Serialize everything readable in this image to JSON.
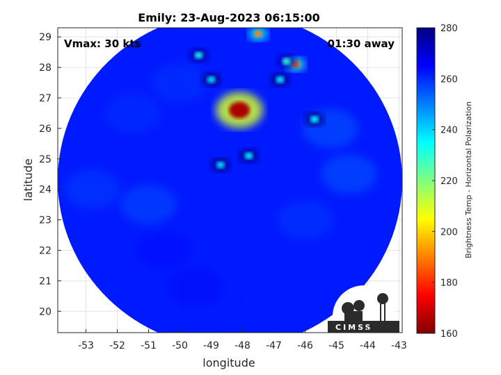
{
  "chart_data": {
    "type": "heatmap",
    "title": "Emily: 23-Aug-2023 06:15:00",
    "xlabel": "longitude",
    "ylabel": "latitude",
    "xlim": [
      -53.9,
      -42.9
    ],
    "ylim": [
      19.3,
      29.3
    ],
    "xticks": [
      "-53",
      "-52",
      "-51",
      "-50",
      "-49",
      "-48",
      "-47",
      "-46",
      "-45",
      "-44",
      "-43"
    ],
    "yticks": [
      "20",
      "21",
      "22",
      "23",
      "24",
      "25",
      "26",
      "27",
      "28",
      "29"
    ],
    "grid": true,
    "annotations": {
      "vmax": "Vmax: 30 kts",
      "time_away": "01:30 away"
    },
    "colorbar": {
      "label": "Brightness Temp - Horizontal Polarization",
      "min": 160,
      "max": 280,
      "ticks": [
        "160",
        "180",
        "200",
        "220",
        "240",
        "260",
        "280"
      ],
      "colormap": "jet"
    },
    "swath": {
      "center": [
        -48.4,
        24.3
      ],
      "radius_deg": 5.5,
      "typical_value": 262
    },
    "features": [
      {
        "lon": -48.1,
        "lat": 26.6,
        "value": 165
      },
      {
        "lon": -47.5,
        "lat": 29.1,
        "value": 190
      },
      {
        "lon": -46.3,
        "lat": 28.1,
        "value": 185
      },
      {
        "lon": -46.6,
        "lat": 28.2,
        "value": 230
      },
      {
        "lon": -49.4,
        "lat": 28.4,
        "value": 232
      },
      {
        "lon": -49.0,
        "lat": 27.6,
        "value": 238
      },
      {
        "lon": -45.7,
        "lat": 26.3,
        "value": 235
      },
      {
        "lon": -47.8,
        "lat": 25.1,
        "value": 236
      },
      {
        "lon": -48.7,
        "lat": 24.8,
        "value": 238
      },
      {
        "lon": -46.8,
        "lat": 27.6,
        "value": 236
      }
    ],
    "logo_text": "CIMSS"
  }
}
